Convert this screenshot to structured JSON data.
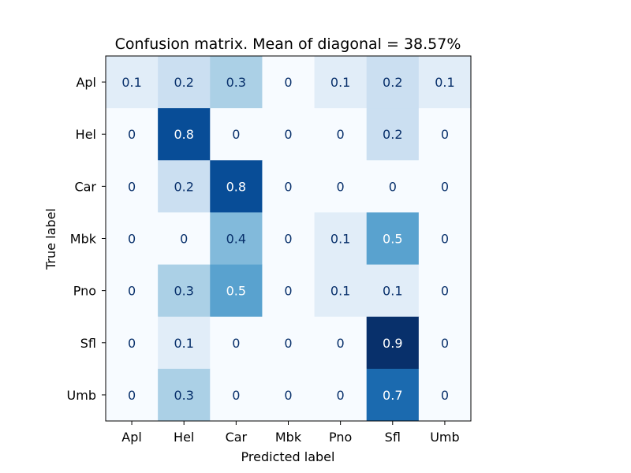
{
  "chart_data": {
    "type": "heatmap",
    "title": "Confusion matrix. Mean of diagonal = 38.57%",
    "xlabel": "Predicted label",
    "ylabel": "True label",
    "x_categories": [
      "Apl",
      "Hel",
      "Car",
      "Mbk",
      "Pno",
      "Sfl",
      "Umb"
    ],
    "y_categories": [
      "Apl",
      "Hel",
      "Car",
      "Mbk",
      "Pno",
      "Sfl",
      "Umb"
    ],
    "values": [
      [
        0.1,
        0.2,
        0.3,
        0.0,
        0.1,
        0.2,
        0.1
      ],
      [
        0.0,
        0.8,
        0.0,
        0.0,
        0.0,
        0.2,
        0.0
      ],
      [
        0.0,
        0.2,
        0.8,
        0.0,
        0.0,
        0.0,
        0.0
      ],
      [
        0.0,
        0.0,
        0.4,
        0.0,
        0.1,
        0.5,
        0.0
      ],
      [
        0.0,
        0.3,
        0.5,
        0.0,
        0.1,
        0.1,
        0.0
      ],
      [
        0.0,
        0.1,
        0.0,
        0.0,
        0.0,
        0.9,
        0.0
      ],
      [
        0.0,
        0.3,
        0.0,
        0.0,
        0.0,
        0.7,
        0.0
      ]
    ],
    "labels": [
      [
        "0.1",
        "0.2",
        "0.3",
        "0",
        "0.1",
        "0.2",
        "0.1"
      ],
      [
        "0",
        "0.8",
        "0",
        "0",
        "0",
        "0.2",
        "0"
      ],
      [
        "0",
        "0.2",
        "0.8",
        "0",
        "0",
        "0",
        "0"
      ],
      [
        "0",
        "0",
        "0.4",
        "0",
        "0.1",
        "0.5",
        "0"
      ],
      [
        "0",
        "0.3",
        "0.5",
        "0",
        "0.1",
        "0.1",
        "0"
      ],
      [
        "0",
        "0.1",
        "0",
        "0",
        "0",
        "0.9",
        "0"
      ],
      [
        "0",
        "0.3",
        "0",
        "0",
        "0",
        "0.7",
        "0"
      ]
    ],
    "colormap": "Blues",
    "value_range": [
      0,
      0.9
    ],
    "grid": false,
    "legend": "none",
    "text_colors": {
      "light_cells": "#08306b",
      "dark_cells": "#ffffff"
    }
  }
}
